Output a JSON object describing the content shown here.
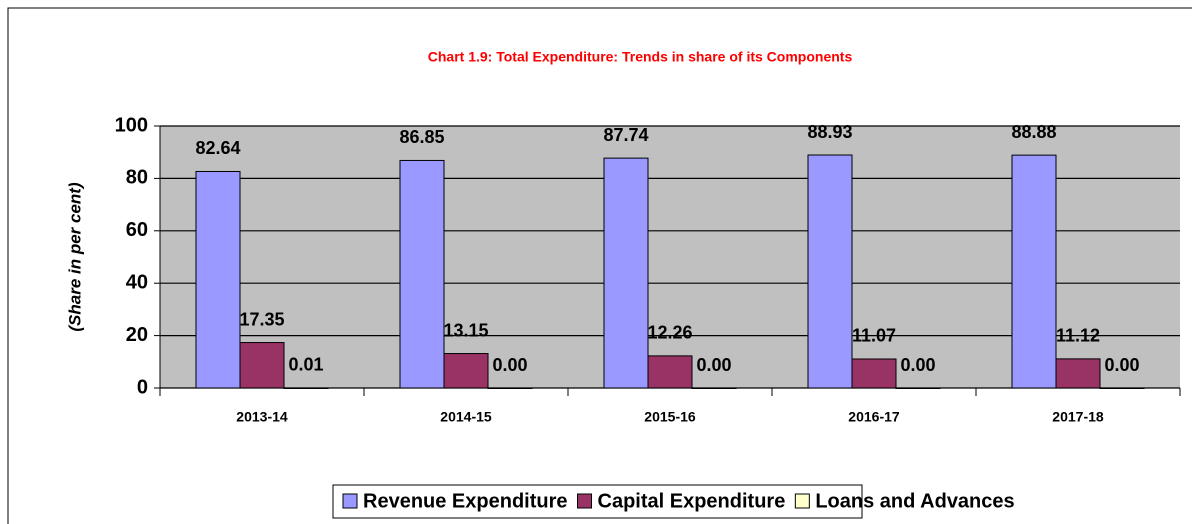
{
  "chart_data": {
    "type": "bar",
    "title": "Chart 1.9: Total Expenditure: Trends in share of its Components",
    "y_label": "(Share in per cent)",
    "categories": [
      "2013-14",
      "2014-15",
      "2015-16",
      "2016-17",
      "2017-18"
    ],
    "series": [
      {
        "name": "Revenue Expenditure",
        "color": "#9999ff",
        "values": [
          82.64,
          86.85,
          87.74,
          88.93,
          88.88
        ]
      },
      {
        "name": "Capital Expenditure",
        "color": "#993366",
        "values": [
          17.35,
          13.15,
          12.26,
          11.07,
          11.12
        ]
      },
      {
        "name": "Loans and Advances",
        "color": "#ffffcc",
        "values": [
          0.01,
          0,
          0,
          0,
          0
        ],
        "value_labels": [
          "0.01",
          "0.00",
          "0.00",
          "0.00",
          "0.00"
        ]
      }
    ],
    "ylim": [
      0,
      100
    ],
    "yticks": [
      0,
      20,
      40,
      60,
      80,
      100
    ],
    "grid": true,
    "legend": "bottom"
  }
}
